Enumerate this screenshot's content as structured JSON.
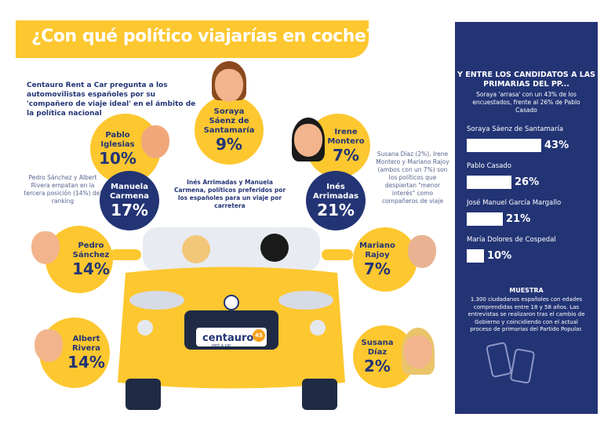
{
  "title": "¿Con qué político viajarías en coche?",
  "intro": "Centauro Rent a Car pregunta a los automovilistas españoles por su 'compañero de viaje ideal' en el ámbito de la política nacional",
  "notes": {
    "tie": "Pedro Sánchez y Albert Rivera empatan en la tercera posición (14%) del ranking",
    "favorites": "Inés Arrimadas y Manuela Carmena, políticos preferidos por los españoles para un viaje por carretera",
    "least": "Susana Díaz (2%), Irene Montero y Mariano Rajoy (ambos con un 7%) son los políticos que despiertan \"menor interés\" como compañeros de viaje"
  },
  "politicians": [
    {
      "name": "Soraya Sáenz de Santamaría",
      "pct": "9%"
    },
    {
      "name": "Pablo Iglesias",
      "pct": "10%"
    },
    {
      "name": "Irene Montero",
      "pct": "7%"
    },
    {
      "name": "Manuela Carmena",
      "pct": "17%"
    },
    {
      "name": "Inés Arrimadas",
      "pct": "21%"
    },
    {
      "name": "Pedro Sánchez",
      "pct": "14%"
    },
    {
      "name": "Mariano Rajoy",
      "pct": "7%"
    },
    {
      "name": "Albert Rivera",
      "pct": "14%"
    },
    {
      "name": "Susana Díaz",
      "pct": "2%"
    }
  ],
  "car": {
    "brand": "centauro",
    "tagline": "rent a car",
    "badge": "45"
  },
  "panel": {
    "title": "Y ENTRE LOS CANDIDATOS A LAS PRIMARIAS DEL PP...",
    "subtitle": "Soraya 'arrasa' con un 43% de los encuestados, frente al 26% de Pablo Casado",
    "bars": [
      {
        "label": "Soraya Sáenz de Santamaría",
        "value": 43,
        "text": "43%"
      },
      {
        "label": "Pablo Casado",
        "value": 26,
        "text": "26%"
      },
      {
        "label": "José Manuel García Margallo",
        "value": 21,
        "text": "21%"
      },
      {
        "label": "María Dolores de Cospedal",
        "value": 10,
        "text": "10%"
      }
    ],
    "sample_title": "MUESTRA",
    "sample_text": "1.300 ciudadanos españoles con edades comprendidas entre 18 y 58 años. Las entrevistas se realizaron tras el cambio de Gobierno y coincidiendo con el actual proceso de primarias del Partido Popular."
  },
  "colors": {
    "yellow": "#fdc72f",
    "navy": "#233475"
  }
}
